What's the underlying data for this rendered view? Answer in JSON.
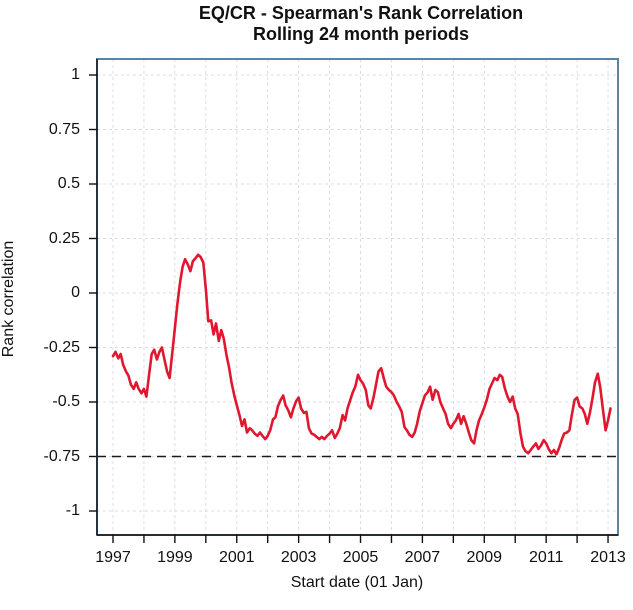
{
  "title": {
    "line1": "EQ/CR - Spearman's Rank Correlation",
    "line2": "Rolling 24 month periods"
  },
  "axes": {
    "y_label": "Rank correlation",
    "x_label": "Start date (01 Jan)"
  },
  "colors": {
    "line": "#e0172f",
    "frame": "#5b84a2",
    "grid": "#dadee2",
    "reference_line": "#1a1a1a",
    "axis": "#111111",
    "background": "#ffffff",
    "text": "#111111"
  },
  "chart_data": {
    "type": "line",
    "title": "EQ/CR - Spearman's Rank Correlation",
    "subtitle": "Rolling 24 month periods",
    "xlabel": "Start date (01 Jan)",
    "ylabel": "Rank correlation",
    "xlim": [
      1996.48,
      2013.33
    ],
    "ylim": [
      -1.075,
      1.075
    ],
    "grid": true,
    "legend": "none",
    "y_tick_values": [
      1,
      0.75,
      0.5,
      0.25,
      0,
      -0.25,
      -0.5,
      -0.75,
      -1
    ],
    "x_minor_tick_values": [
      1997,
      1998,
      1999,
      2000,
      2001,
      2002,
      2003,
      2004,
      2005,
      2006,
      2007,
      2008,
      2009,
      2010,
      2011,
      2012,
      2013
    ],
    "x_label_years": [
      1997,
      1999,
      2001,
      2003,
      2005,
      2007,
      2009,
      2011,
      2013
    ],
    "reference_line": {
      "y": -0.75,
      "style": "dashed"
    },
    "series": [
      {
        "name": "EQ/CR Spearman rank correlation (rolling 24m)",
        "color": "#e0172f",
        "points": [
          [
            1997.0,
            -0.29
          ],
          [
            1997.08,
            -0.27
          ],
          [
            1997.17,
            -0.3
          ],
          [
            1997.25,
            -0.28
          ],
          [
            1997.33,
            -0.33
          ],
          [
            1997.42,
            -0.36
          ],
          [
            1997.5,
            -0.38
          ],
          [
            1997.58,
            -0.42
          ],
          [
            1997.67,
            -0.44
          ],
          [
            1997.75,
            -0.41
          ],
          [
            1997.83,
            -0.44
          ],
          [
            1997.92,
            -0.46
          ],
          [
            1998.0,
            -0.44
          ],
          [
            1998.08,
            -0.475
          ],
          [
            1998.17,
            -0.37
          ],
          [
            1998.25,
            -0.28
          ],
          [
            1998.33,
            -0.26
          ],
          [
            1998.42,
            -0.305
          ],
          [
            1998.5,
            -0.27
          ],
          [
            1998.58,
            -0.25
          ],
          [
            1998.67,
            -0.31
          ],
          [
            1998.75,
            -0.36
          ],
          [
            1998.83,
            -0.39
          ],
          [
            1998.92,
            -0.27
          ],
          [
            1999.0,
            -0.16
          ],
          [
            1999.08,
            -0.05
          ],
          [
            1999.17,
            0.05
          ],
          [
            1999.25,
            0.12
          ],
          [
            1999.33,
            0.155
          ],
          [
            1999.42,
            0.13
          ],
          [
            1999.5,
            0.1
          ],
          [
            1999.58,
            0.145
          ],
          [
            1999.67,
            0.16
          ],
          [
            1999.75,
            0.175
          ],
          [
            1999.83,
            0.165
          ],
          [
            1999.92,
            0.14
          ],
          [
            2000.0,
            0.02
          ],
          [
            2000.08,
            -0.13
          ],
          [
            2000.17,
            -0.125
          ],
          [
            2000.25,
            -0.19
          ],
          [
            2000.33,
            -0.14
          ],
          [
            2000.42,
            -0.22
          ],
          [
            2000.5,
            -0.17
          ],
          [
            2000.58,
            -0.21
          ],
          [
            2000.67,
            -0.285
          ],
          [
            2000.75,
            -0.34
          ],
          [
            2000.83,
            -0.41
          ],
          [
            2000.92,
            -0.47
          ],
          [
            2001.0,
            -0.515
          ],
          [
            2001.08,
            -0.555
          ],
          [
            2001.17,
            -0.61
          ],
          [
            2001.25,
            -0.58
          ],
          [
            2001.33,
            -0.64
          ],
          [
            2001.42,
            -0.62
          ],
          [
            2001.5,
            -0.63
          ],
          [
            2001.58,
            -0.645
          ],
          [
            2001.67,
            -0.655
          ],
          [
            2001.75,
            -0.64
          ],
          [
            2001.83,
            -0.655
          ],
          [
            2001.92,
            -0.67
          ],
          [
            2002.0,
            -0.655
          ],
          [
            2002.08,
            -0.63
          ],
          [
            2002.17,
            -0.58
          ],
          [
            2002.25,
            -0.57
          ],
          [
            2002.33,
            -0.52
          ],
          [
            2002.42,
            -0.49
          ],
          [
            2002.5,
            -0.47
          ],
          [
            2002.58,
            -0.515
          ],
          [
            2002.67,
            -0.54
          ],
          [
            2002.75,
            -0.57
          ],
          [
            2002.83,
            -0.53
          ],
          [
            2002.92,
            -0.495
          ],
          [
            2003.0,
            -0.48
          ],
          [
            2003.08,
            -0.53
          ],
          [
            2003.17,
            -0.55
          ],
          [
            2003.25,
            -0.545
          ],
          [
            2003.33,
            -0.62
          ],
          [
            2003.42,
            -0.645
          ],
          [
            2003.5,
            -0.65
          ],
          [
            2003.58,
            -0.66
          ],
          [
            2003.67,
            -0.67
          ],
          [
            2003.75,
            -0.66
          ],
          [
            2003.83,
            -0.67
          ],
          [
            2003.92,
            -0.655
          ],
          [
            2004.0,
            -0.645
          ],
          [
            2004.08,
            -0.63
          ],
          [
            2004.17,
            -0.665
          ],
          [
            2004.25,
            -0.645
          ],
          [
            2004.33,
            -0.62
          ],
          [
            2004.42,
            -0.56
          ],
          [
            2004.5,
            -0.585
          ],
          [
            2004.58,
            -0.53
          ],
          [
            2004.67,
            -0.49
          ],
          [
            2004.75,
            -0.455
          ],
          [
            2004.83,
            -0.43
          ],
          [
            2004.92,
            -0.375
          ],
          [
            2005.0,
            -0.4
          ],
          [
            2005.08,
            -0.415
          ],
          [
            2005.17,
            -0.445
          ],
          [
            2005.25,
            -0.515
          ],
          [
            2005.33,
            -0.53
          ],
          [
            2005.42,
            -0.48
          ],
          [
            2005.5,
            -0.42
          ],
          [
            2005.58,
            -0.36
          ],
          [
            2005.67,
            -0.345
          ],
          [
            2005.75,
            -0.39
          ],
          [
            2005.83,
            -0.43
          ],
          [
            2005.92,
            -0.445
          ],
          [
            2006.0,
            -0.455
          ],
          [
            2006.08,
            -0.47
          ],
          [
            2006.17,
            -0.5
          ],
          [
            2006.25,
            -0.52
          ],
          [
            2006.33,
            -0.545
          ],
          [
            2006.42,
            -0.615
          ],
          [
            2006.5,
            -0.63
          ],
          [
            2006.58,
            -0.65
          ],
          [
            2006.67,
            -0.66
          ],
          [
            2006.75,
            -0.64
          ],
          [
            2006.83,
            -0.6
          ],
          [
            2006.92,
            -0.54
          ],
          [
            2007.0,
            -0.505
          ],
          [
            2007.08,
            -0.47
          ],
          [
            2007.17,
            -0.455
          ],
          [
            2007.25,
            -0.43
          ],
          [
            2007.33,
            -0.49
          ],
          [
            2007.42,
            -0.445
          ],
          [
            2007.5,
            -0.455
          ],
          [
            2007.58,
            -0.5
          ],
          [
            2007.67,
            -0.53
          ],
          [
            2007.75,
            -0.555
          ],
          [
            2007.83,
            -0.6
          ],
          [
            2007.92,
            -0.62
          ],
          [
            2008.0,
            -0.6
          ],
          [
            2008.08,
            -0.585
          ],
          [
            2008.17,
            -0.555
          ],
          [
            2008.25,
            -0.6
          ],
          [
            2008.33,
            -0.565
          ],
          [
            2008.42,
            -0.6
          ],
          [
            2008.5,
            -0.64
          ],
          [
            2008.58,
            -0.675
          ],
          [
            2008.67,
            -0.69
          ],
          [
            2008.75,
            -0.63
          ],
          [
            2008.83,
            -0.585
          ],
          [
            2008.92,
            -0.555
          ],
          [
            2009.0,
            -0.525
          ],
          [
            2009.08,
            -0.49
          ],
          [
            2009.17,
            -0.44
          ],
          [
            2009.25,
            -0.415
          ],
          [
            2009.33,
            -0.39
          ],
          [
            2009.42,
            -0.4
          ],
          [
            2009.5,
            -0.375
          ],
          [
            2009.58,
            -0.385
          ],
          [
            2009.67,
            -0.44
          ],
          [
            2009.75,
            -0.475
          ],
          [
            2009.83,
            -0.5
          ],
          [
            2009.92,
            -0.475
          ],
          [
            2010.0,
            -0.53
          ],
          [
            2010.08,
            -0.555
          ],
          [
            2010.17,
            -0.645
          ],
          [
            2010.25,
            -0.705
          ],
          [
            2010.33,
            -0.725
          ],
          [
            2010.42,
            -0.735
          ],
          [
            2010.5,
            -0.72
          ],
          [
            2010.58,
            -0.705
          ],
          [
            2010.67,
            -0.69
          ],
          [
            2010.75,
            -0.715
          ],
          [
            2010.83,
            -0.7
          ],
          [
            2010.92,
            -0.675
          ],
          [
            2011.0,
            -0.69
          ],
          [
            2011.08,
            -0.715
          ],
          [
            2011.17,
            -0.735
          ],
          [
            2011.25,
            -0.72
          ],
          [
            2011.33,
            -0.74
          ],
          [
            2011.42,
            -0.71
          ],
          [
            2011.5,
            -0.675
          ],
          [
            2011.58,
            -0.645
          ],
          [
            2011.67,
            -0.64
          ],
          [
            2011.75,
            -0.63
          ],
          [
            2011.83,
            -0.56
          ],
          [
            2011.92,
            -0.49
          ],
          [
            2012.0,
            -0.48
          ],
          [
            2012.08,
            -0.52
          ],
          [
            2012.17,
            -0.53
          ],
          [
            2012.25,
            -0.555
          ],
          [
            2012.33,
            -0.6
          ],
          [
            2012.42,
            -0.545
          ],
          [
            2012.5,
            -0.48
          ],
          [
            2012.58,
            -0.41
          ],
          [
            2012.67,
            -0.37
          ],
          [
            2012.75,
            -0.435
          ],
          [
            2012.83,
            -0.53
          ],
          [
            2012.92,
            -0.63
          ],
          [
            2013.0,
            -0.585
          ],
          [
            2013.08,
            -0.53
          ]
        ]
      }
    ]
  }
}
